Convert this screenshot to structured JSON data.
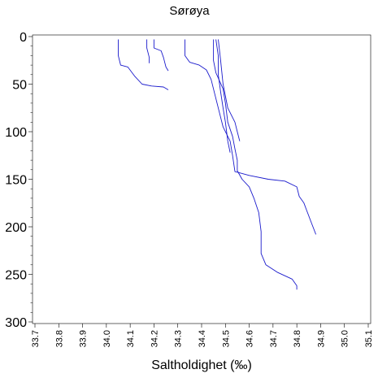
{
  "chart_data": {
    "type": "line",
    "title": "Sørøya",
    "xlabel": "Saltholdighet (‰)",
    "ylabel": "",
    "xlim": [
      33.7,
      35.1
    ],
    "ylim": [
      0,
      300
    ],
    "y_inverted": true,
    "grid": false,
    "legend": "none",
    "x_ticks": [
      "33.7",
      "33.8",
      "33.9",
      "34.0",
      "34.1",
      "34.2",
      "34.3",
      "34.4",
      "34.5",
      "34.6",
      "34.7",
      "34.8",
      "34.9",
      "35.0",
      "35.1"
    ],
    "y_ticks": [
      "0",
      "50",
      "100",
      "150",
      "200",
      "250",
      "300"
    ],
    "line_color": "#1a1acc",
    "series": [
      {
        "points": [
          [
            34.05,
            3
          ],
          [
            34.05,
            20
          ],
          [
            34.06,
            30
          ],
          [
            34.09,
            32
          ],
          [
            34.12,
            42
          ],
          [
            34.15,
            50
          ],
          [
            34.19,
            52
          ],
          [
            34.24,
            53
          ],
          [
            34.26,
            56
          ]
        ]
      },
      {
        "points": [
          [
            34.17,
            3
          ],
          [
            34.17,
            12
          ],
          [
            34.18,
            22
          ],
          [
            34.18,
            28
          ]
        ]
      },
      {
        "points": [
          [
            34.2,
            3
          ],
          [
            34.2,
            12
          ],
          [
            34.23,
            15
          ],
          [
            34.24,
            22
          ],
          [
            34.25,
            32
          ],
          [
            34.26,
            36
          ]
        ]
      },
      {
        "points": [
          [
            34.33,
            3
          ],
          [
            34.33,
            20
          ],
          [
            34.35,
            27
          ],
          [
            34.39,
            30
          ],
          [
            34.42,
            35
          ],
          [
            34.44,
            45
          ],
          [
            34.45,
            55
          ],
          [
            34.47,
            75
          ],
          [
            34.49,
            95
          ],
          [
            34.52,
            110
          ],
          [
            34.53,
            125
          ],
          [
            34.54,
            142
          ],
          [
            34.6,
            146
          ],
          [
            34.68,
            150
          ],
          [
            34.75,
            152
          ],
          [
            34.8,
            158
          ],
          [
            34.81,
            168
          ],
          [
            34.83,
            175
          ],
          [
            34.84,
            182
          ],
          [
            34.86,
            195
          ],
          [
            34.88,
            208
          ]
        ]
      },
      {
        "points": [
          [
            34.45,
            3
          ],
          [
            34.45,
            25
          ],
          [
            34.46,
            38
          ],
          [
            34.49,
            55
          ],
          [
            34.5,
            70
          ],
          [
            34.51,
            90
          ],
          [
            34.53,
            105
          ],
          [
            34.54,
            118
          ],
          [
            34.55,
            130
          ],
          [
            34.55,
            141
          ],
          [
            34.57,
            150
          ],
          [
            34.6,
            158
          ],
          [
            34.62,
            170
          ],
          [
            34.64,
            185
          ],
          [
            34.65,
            205
          ],
          [
            34.65,
            228
          ],
          [
            34.67,
            240
          ],
          [
            34.72,
            248
          ],
          [
            34.78,
            255
          ],
          [
            34.8,
            262
          ],
          [
            34.8,
            266
          ]
        ]
      },
      {
        "points": [
          [
            34.46,
            3
          ],
          [
            34.47,
            20
          ],
          [
            34.47,
            40
          ],
          [
            34.48,
            58
          ],
          [
            34.49,
            75
          ],
          [
            34.5,
            90
          ],
          [
            34.51,
            110
          ],
          [
            34.52,
            122
          ]
        ]
      },
      {
        "points": [
          [
            34.47,
            3
          ],
          [
            34.48,
            25
          ],
          [
            34.49,
            50
          ],
          [
            34.51,
            75
          ],
          [
            34.54,
            90
          ],
          [
            34.55,
            100
          ],
          [
            34.56,
            110
          ]
        ]
      }
    ]
  }
}
